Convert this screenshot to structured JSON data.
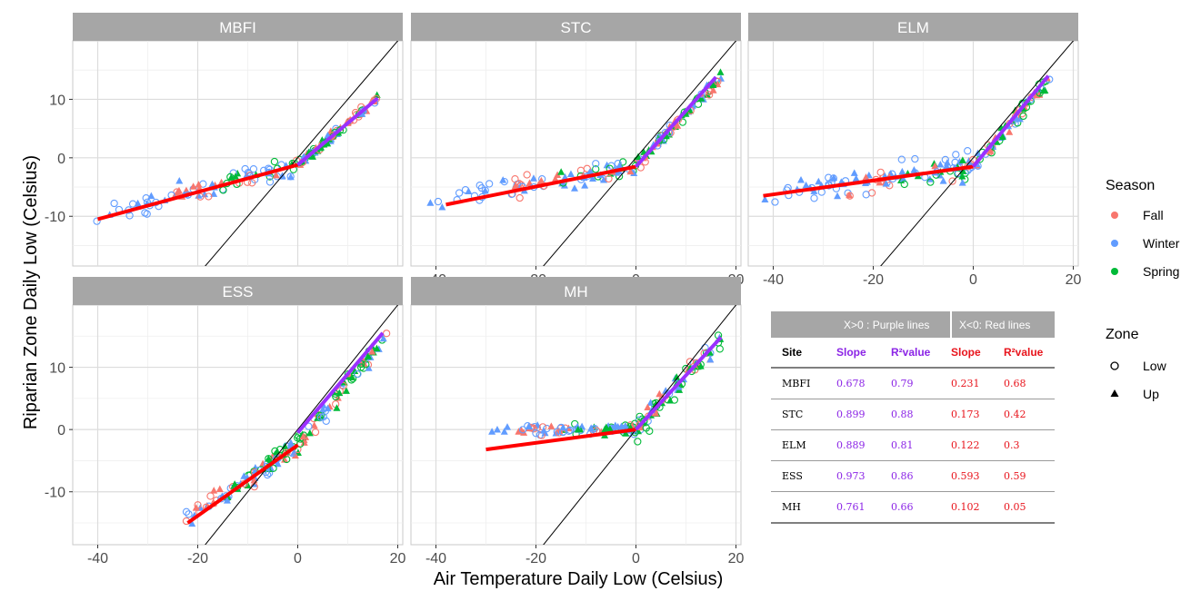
{
  "chart_data": {
    "type": "scatter",
    "x_axis_title": "Air Temperature Daily Low (Celsius)",
    "y_axis_title": "Riparian Zone Daily Low (Celsius)",
    "xlim": [
      -45,
      21
    ],
    "ylim": [
      -18.5,
      20
    ],
    "x_ticks": [
      -40,
      -20,
      0,
      20
    ],
    "y_ticks": [
      -10,
      0,
      10
    ],
    "grid": true,
    "reference_line": "y = x",
    "facets": [
      {
        "label": "MBFI",
        "x_range": [
          -42,
          16
        ],
        "y_at_xmin": -10.5,
        "y_at_0": -1.2,
        "spread_winter": 1.6,
        "upper_spread": 0.8,
        "red_line": {
          "from": [
            -40,
            -10.5
          ],
          "to": [
            0,
            -1.2
          ]
        },
        "purple_line": {
          "from": [
            0,
            -1.2
          ],
          "to": [
            16,
            10.2
          ]
        }
      },
      {
        "label": "STC",
        "x_range": [
          -42,
          17
        ],
        "y_at_xmin": -7.5,
        "y_at_0": -1.5,
        "spread_winter": 2.0,
        "upper_spread": 1.0,
        "red_line": {
          "from": [
            -38,
            -8
          ],
          "to": [
            0,
            -1.5
          ]
        },
        "purple_line": {
          "from": [
            0,
            -1.5
          ],
          "to": [
            16,
            13.8
          ]
        }
      },
      {
        "label": "ELM",
        "x_range": [
          -43,
          16
        ],
        "y_at_xmin": -6.5,
        "y_at_0": -1.5,
        "spread_winter": 2.2,
        "upper_spread": 1.2,
        "red_line": {
          "from": [
            -42,
            -6.5
          ],
          "to": [
            0,
            -1.5
          ]
        },
        "purple_line": {
          "from": [
            0,
            -1.5
          ],
          "to": [
            15,
            14
          ]
        }
      },
      {
        "label": "ESS",
        "x_range": [
          -23,
          18
        ],
        "y_at_xmin": -15,
        "y_at_0": -2.5,
        "spread_winter": 1.5,
        "upper_spread": 1.4,
        "red_line": {
          "from": [
            -22,
            -15
          ],
          "to": [
            0,
            -2.5
          ]
        },
        "purple_line": {
          "from": [
            0,
            -0.5
          ],
          "to": [
            17,
            15.5
          ]
        }
      },
      {
        "label": "MH",
        "x_range": [
          -30,
          17
        ],
        "y_at_xmin": 0,
        "y_at_0": 0,
        "spread_winter": 0.8,
        "upper_spread": 1.8,
        "red_line": {
          "from": [
            -30,
            -3.2
          ],
          "to": [
            0,
            0
          ]
        },
        "purple_line": {
          "from": [
            0,
            0
          ],
          "to": [
            17,
            14.8
          ]
        }
      }
    ],
    "legend": {
      "season_title": "Season",
      "seasons": [
        {
          "name": "Fall",
          "color": "#F8766D"
        },
        {
          "name": "Winter",
          "color": "#619CFF"
        },
        {
          "name": "Spring",
          "color": "#00BA38"
        }
      ],
      "zone_title": "Zone",
      "zones": [
        {
          "name": "Low",
          "shape": "open-circle"
        },
        {
          "name": "Up",
          "shape": "filled-triangle"
        }
      ]
    },
    "line_colors": {
      "purple": "#9B30FF",
      "red": "#FF0000"
    }
  },
  "table": {
    "group_blank": "",
    "group_purple": "X>0 : Purple lines",
    "group_red": "X<0: Red lines",
    "headers": [
      "Site",
      "Slope",
      "R²value",
      "Slope",
      "R²value"
    ],
    "rows": [
      [
        "MBFI",
        "0.678",
        "0.79",
        "0.231",
        "0.68"
      ],
      [
        "STC",
        "0.899",
        "0.88",
        "0.173",
        "0.42"
      ],
      [
        "ELM",
        "0.889",
        "0.81",
        "0.122",
        "0.3"
      ],
      [
        "ESS",
        "0.973",
        "0.86",
        "0.593",
        "0.59"
      ],
      [
        "MH",
        "0.761",
        "0.66",
        "0.102",
        "0.05"
      ]
    ]
  }
}
